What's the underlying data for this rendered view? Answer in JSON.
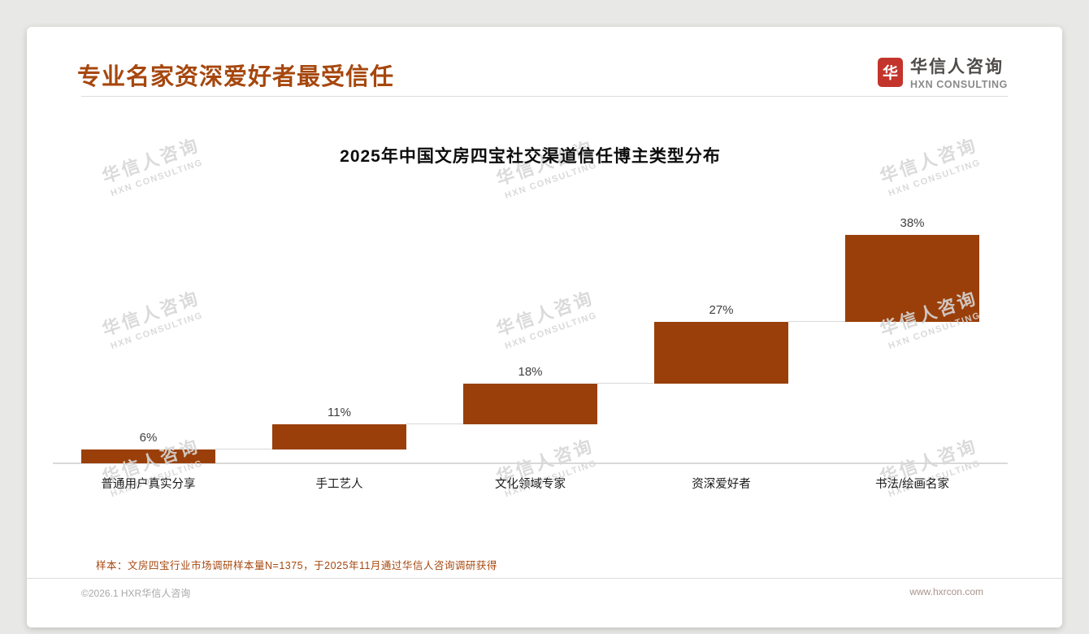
{
  "page": {
    "title": "专业名家资深爱好者最受信任",
    "logo": {
      "icon_char": "华",
      "name": "华信人咨询",
      "sub": "HXN CONSULTING"
    },
    "note": "样本：文房四宝行业市场调研样本量N=1375，于2025年11月通过华信人咨询调研获得",
    "footer": {
      "left": "©2026.1 HXR华信人咨询",
      "right": "www.hxrcon.com"
    },
    "watermark": {
      "line1": "华信人咨询",
      "line2": "HXN CONSULTING"
    }
  },
  "chart_data": {
    "type": "bar",
    "subtype": "waterfall-steps",
    "title": "2025年中国文房四宝社交渠道信任博主类型分布",
    "categories": [
      "普通用户真实分享",
      "手工艺人",
      "文化领域专家",
      "资深爱好者",
      "书法/绘画名家"
    ],
    "values": [
      6,
      11,
      18,
      27,
      38
    ],
    "labels": [
      "6%",
      "11%",
      "18%",
      "27%",
      "38%"
    ],
    "cumulative_starts": [
      0,
      6,
      17,
      35,
      62
    ],
    "xlabel": "",
    "ylabel": "",
    "ylim": [
      0,
      100
    ],
    "grid": false,
    "legend": false,
    "bar_color": "#9a3f0a",
    "connector_color": "#d9d9d9"
  },
  "colors": {
    "accent": "#A6470E",
    "bar": "#9a3f0a",
    "logo_red": "#c2342c",
    "card_bg": "#ffffff",
    "page_bg": "#e8e8e6"
  }
}
